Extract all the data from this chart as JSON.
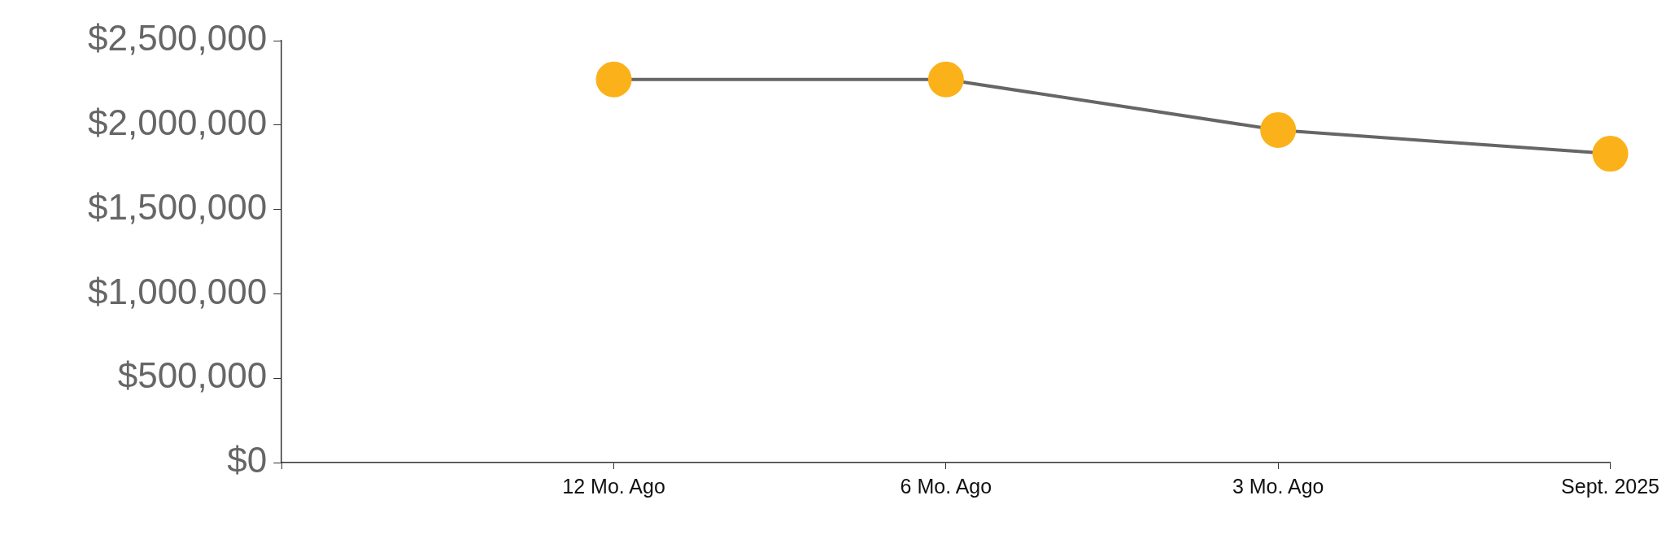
{
  "chart_data": {
    "type": "line",
    "categories": [
      null,
      "12 Mo. Ago",
      "6 Mo. Ago",
      "3 Mo. Ago",
      "Sept. 2025"
    ],
    "series": [
      {
        "color": "#fbb21a",
        "values": [
          null,
          2270000,
          2270000,
          1970000,
          1830000
        ]
      }
    ],
    "ylim": [
      0,
      2500000
    ],
    "yticks": [
      {
        "value": 0,
        "label": "$0"
      },
      {
        "value": 500000,
        "label": "$500,000"
      },
      {
        "value": 1000000,
        "label": "$1,000,000"
      },
      {
        "value": 1500000,
        "label": "$1,500,000"
      },
      {
        "value": 2000000,
        "label": "$2,000,000"
      },
      {
        "value": 2500000,
        "label": "$2,500,000"
      }
    ],
    "grid": false,
    "legend": false,
    "marker": "circle",
    "line_style": "solid"
  }
}
